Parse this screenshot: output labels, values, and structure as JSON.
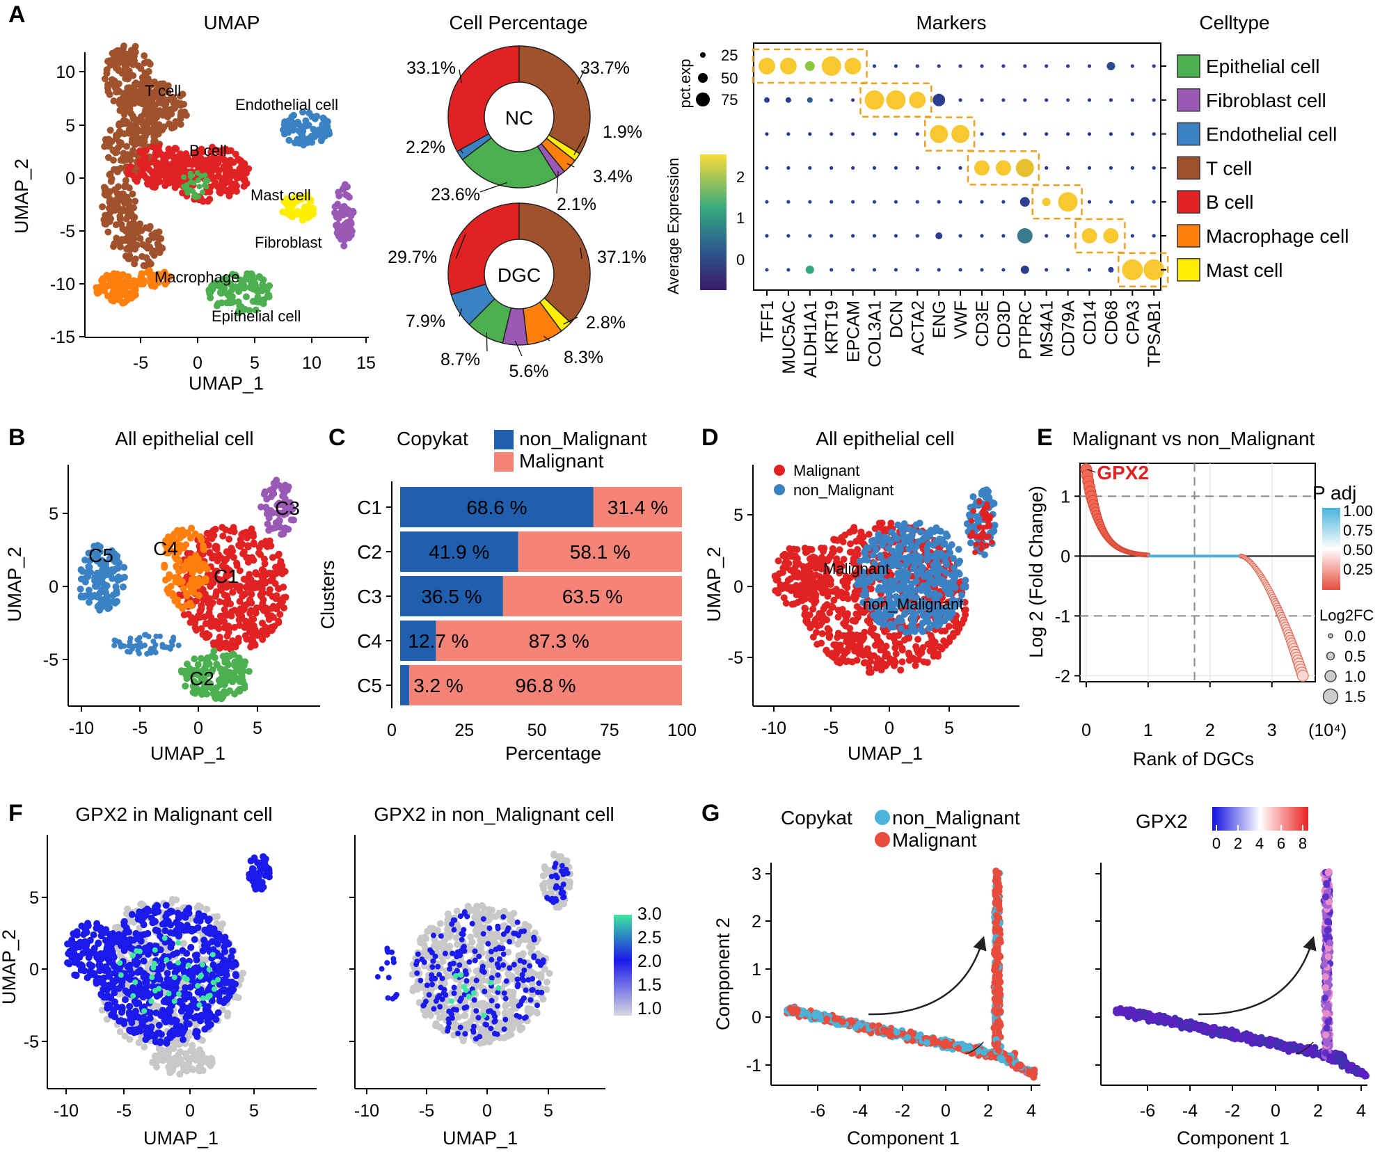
{
  "colors": {
    "epithelial": "#4caf50",
    "fibroblast": "#9b59b6",
    "endothelial": "#3b82c4",
    "tcell": "#a0522d",
    "bcell": "#e02222",
    "macrophage": "#ff7f0e",
    "mast": "#ffee00",
    "malignant": "#e74c3c",
    "nonmalignant": "#4ab3d9",
    "blue_bar": "#1f5fad",
    "salmon_bar": "#f58478",
    "outline_orange": "#f0a020"
  },
  "panel_A": {
    "letter": "A",
    "umap": {
      "title": "UMAP",
      "xlabel": "UMAP_1",
      "ylabel": "UMAP_2",
      "xticks": [
        "-5",
        "0",
        "5",
        "10",
        "15"
      ],
      "yticks": [
        "10",
        "5",
        "0",
        "-5",
        "-10",
        "-15"
      ],
      "labels": {
        "tcell": "T cell",
        "endothelial": "Endothelial cell",
        "bcell": "B cell",
        "mast": "Mast cell",
        "fibroblast": "Fibroblast",
        "macrophage": "Macrophage",
        "epithelial": "Epithelial cell"
      }
    },
    "donut_title": "Cell Percentage"
  },
  "panel_B": {
    "letter": "B",
    "title": "All epithelial cell",
    "xlabel": "UMAP_1",
    "ylabel": "UMAP_2",
    "xticks": [
      "-10",
      "-5",
      "0",
      "5"
    ],
    "yticks": [
      "5",
      "0",
      "-5"
    ],
    "cluster_labels": [
      "C1",
      "C2",
      "C3",
      "C4",
      "C5"
    ]
  },
  "panel_D": {
    "letter": "D",
    "title": "All epithelial cell",
    "xlabel": "UMAP_1",
    "ylabel": "UMAP_2",
    "xticks": [
      "-10",
      "-5",
      "0",
      "5"
    ],
    "yticks": [
      "5",
      "0",
      "-5"
    ],
    "legend": [
      "Malignant",
      "non_Malignant"
    ],
    "annot": [
      "Malignant",
      "non_Malignant"
    ]
  },
  "panel_F": {
    "letter": "F",
    "title_left": "GPX2 in Malignant cell",
    "title_right": "GPX2 in non_Malignant cell",
    "xlabel": "UMAP_1",
    "ylabel": "UMAP_2",
    "xticks": [
      "-10",
      "-5",
      "0",
      "5"
    ],
    "yticks": [
      "5",
      "0",
      "-5"
    ],
    "colorbar_ticks": [
      "3.0",
      "2.5",
      "2.0",
      "1.5",
      "1.0"
    ]
  },
  "panel_G": {
    "letter": "G",
    "legend_title": "Copykat",
    "legend": [
      "non_Malignant",
      "Malignant"
    ],
    "gpx2_title": "GPX2",
    "gpx2_ticks": [
      "0",
      "2",
      "4",
      "6",
      "8"
    ],
    "xlabel": "Component 1",
    "ylabel": "Component 2",
    "xticks": [
      "-6",
      "-4",
      "-2",
      "0",
      "2",
      "4"
    ],
    "yticks": [
      "3",
      "2",
      "1",
      "0",
      "-1"
    ]
  },
  "chart_data": [
    {
      "type": "pie",
      "title": "Cell Percentage",
      "center_label": "NC",
      "categories": [
        "T cell",
        "Mast cell",
        "Macrophage cell",
        "Fibroblast cell",
        "Epithelial cell",
        "Endothelial cell",
        "B cell"
      ],
      "values": [
        33.7,
        1.9,
        3.4,
        2.1,
        23.6,
        2.2,
        33.1
      ],
      "labels": [
        "33.7%",
        "1.9%",
        "3.4%",
        "2.1%",
        "23.6%",
        "2.2%",
        "33.1%"
      ]
    },
    {
      "type": "pie",
      "center_label": "DGC",
      "categories": [
        "T cell",
        "Mast cell",
        "Macrophage cell",
        "Fibroblast cell",
        "Epithelial cell",
        "Endothelial cell",
        "B cell"
      ],
      "values": [
        37.1,
        2.8,
        8.3,
        5.6,
        8.7,
        7.9,
        29.7
      ],
      "labels": [
        "37.1%",
        "2.8%",
        "8.3%",
        "5.6%",
        "8.7%",
        "7.9%",
        "29.7%"
      ]
    },
    {
      "type": "scatter",
      "title": "Markers",
      "genes": [
        "TFF1",
        "MUC5AC",
        "ALDH1A1",
        "KRT19",
        "EPCAM",
        "COL3A1",
        "DCN",
        "ACTA2",
        "ENG",
        "VWF",
        "CD3E",
        "CD3D",
        "PTPRC",
        "MS4A1",
        "CD79A",
        "CD14",
        "CD68",
        "CPA3",
        "TPSAB1"
      ],
      "celltypes": [
        "Epithelial cell",
        "Fibroblast cell",
        "Endothelial cell",
        "T cell",
        "B cell",
        "Macrophage cell",
        "Mast cell"
      ],
      "legend_title": "Celltype",
      "size_legend_title": "pct.exp",
      "size_legend": [
        "25",
        "50",
        "75"
      ],
      "color_legend_title": "Average Expression",
      "color_ticks": [
        "2",
        "1",
        "0"
      ]
    },
    {
      "type": "bar",
      "title": "Copykat",
      "xlabel": "Percentage",
      "ylabel": "Clusters",
      "categories": [
        "C1",
        "C2",
        "C3",
        "C4",
        "C5"
      ],
      "series": [
        {
          "name": "non_Malignant",
          "values": [
            68.6,
            41.9,
            36.5,
            12.7,
            3.2
          ],
          "labels": [
            "68.6 %",
            "41.9 %",
            "36.5 %",
            "12.7 %",
            "3.2 %"
          ]
        },
        {
          "name": "Malignant",
          "values": [
            31.4,
            58.1,
            63.5,
            87.3,
            96.8
          ],
          "labels": [
            "31.4 %",
            "58.1 %",
            "63.5 %",
            "87.3 %",
            "96.8 %"
          ]
        }
      ],
      "xticks": [
        "0",
        "25",
        "50",
        "75",
        "100"
      ],
      "xlim": [
        0,
        100
      ]
    },
    {
      "type": "scatter",
      "title": "Malignant vs non_Malignant",
      "xlabel": "Rank of DGCs",
      "ylabel": "Log 2 (Fold Change)",
      "x_unit": "(10⁴)",
      "xticks": [
        "0",
        "1",
        "2",
        "3"
      ],
      "yticks": [
        "1",
        "0",
        "-1",
        "-2"
      ],
      "xlim": [
        -0.1,
        3.7
      ],
      "ylim": [
        -2.1,
        1.55
      ],
      "highlight": "GPX2",
      "highlight_value": 1.45,
      "padj_title": "P adj",
      "padj_ticks": [
        "1.00",
        "0.75",
        "0.50",
        "0.25"
      ],
      "size_title": "Log2FC",
      "size_ticks": [
        "0.0",
        "0.5",
        "1.0",
        "1.5"
      ]
    }
  ]
}
